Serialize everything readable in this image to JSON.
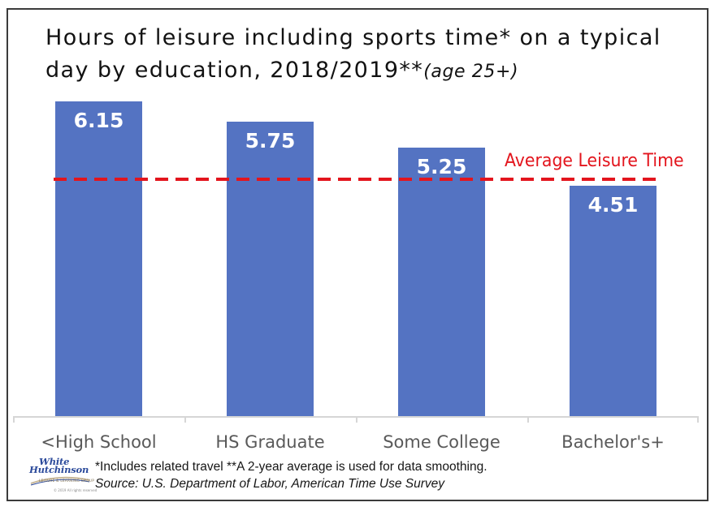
{
  "title": {
    "line1": "Hours of leisure including sports time* on a typical",
    "line2": "day by education, 2018/2019**",
    "line2_note": "(age 25+)"
  },
  "chart_data": {
    "type": "bar",
    "title": "Hours of leisure including sports time* on a typical day by education, 2018/2019** (age 25+)",
    "categories": [
      "<High School",
      "HS Graduate",
      "Some College",
      "Bachelor's+"
    ],
    "values": [
      6.15,
      5.75,
      5.25,
      4.51
    ],
    "value_labels": [
      "6.15",
      "5.75",
      "5.25",
      "4.51"
    ],
    "ylim": [
      0,
      6.3
    ],
    "bar_color": "#5473c2",
    "grid": false,
    "legend": false,
    "reference_line": {
      "value": 4.67,
      "label": "Average Leisure Time",
      "color": "#e3151d",
      "style": "dashed"
    }
  },
  "footer": {
    "note": "*Includes related travel **A 2-year average is used for data smoothing.",
    "source": "Source: U.S. Department of Labor, American Time Use Survey",
    "logo": {
      "line1": "White",
      "line2": "Hutchinson",
      "tagline": "LEISURE & LEARNING GROUP",
      "copyright": "© 2019 All rights reserved"
    }
  }
}
